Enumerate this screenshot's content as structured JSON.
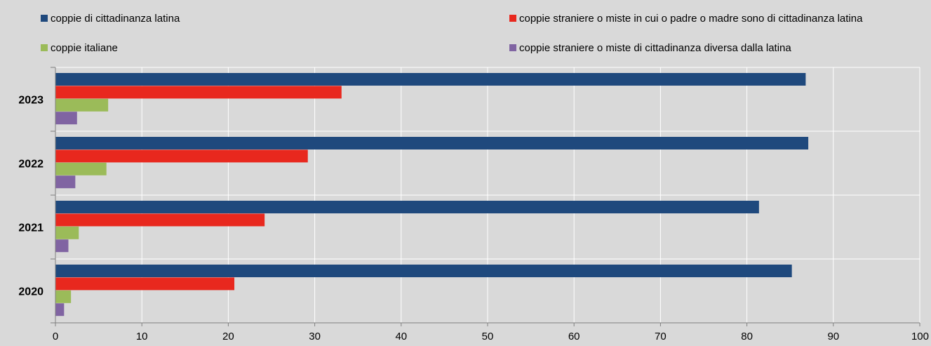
{
  "chart_data": {
    "type": "bar",
    "orientation": "horizontal",
    "categories": [
      "2023",
      "2022",
      "2021",
      "2020"
    ],
    "series": [
      {
        "name": "coppie di cittadinanza latina",
        "color": "#1f497d",
        "values": [
          86.8,
          87.1,
          81.4,
          85.2
        ]
      },
      {
        "name": "coppie straniere o miste in cui o padre o madre sono di cittadinanza latina",
        "color": "#e8281e",
        "values": [
          33.1,
          29.2,
          24.2,
          20.7
        ]
      },
      {
        "name": "coppie italiane",
        "color": "#9bbb59",
        "values": [
          6.1,
          5.9,
          2.7,
          1.8
        ]
      },
      {
        "name": "coppie straniere o miste di cittadinanza diversa dalla latina",
        "color": "#8064a2",
        "values": [
          2.5,
          2.3,
          1.5,
          1.0
        ]
      }
    ],
    "xlim": [
      0,
      100
    ],
    "x_ticks": [
      "0",
      "10",
      "20",
      "30",
      "40",
      "50",
      "60",
      "70",
      "80",
      "90",
      "100"
    ],
    "grid": true,
    "legend_position": "top"
  }
}
